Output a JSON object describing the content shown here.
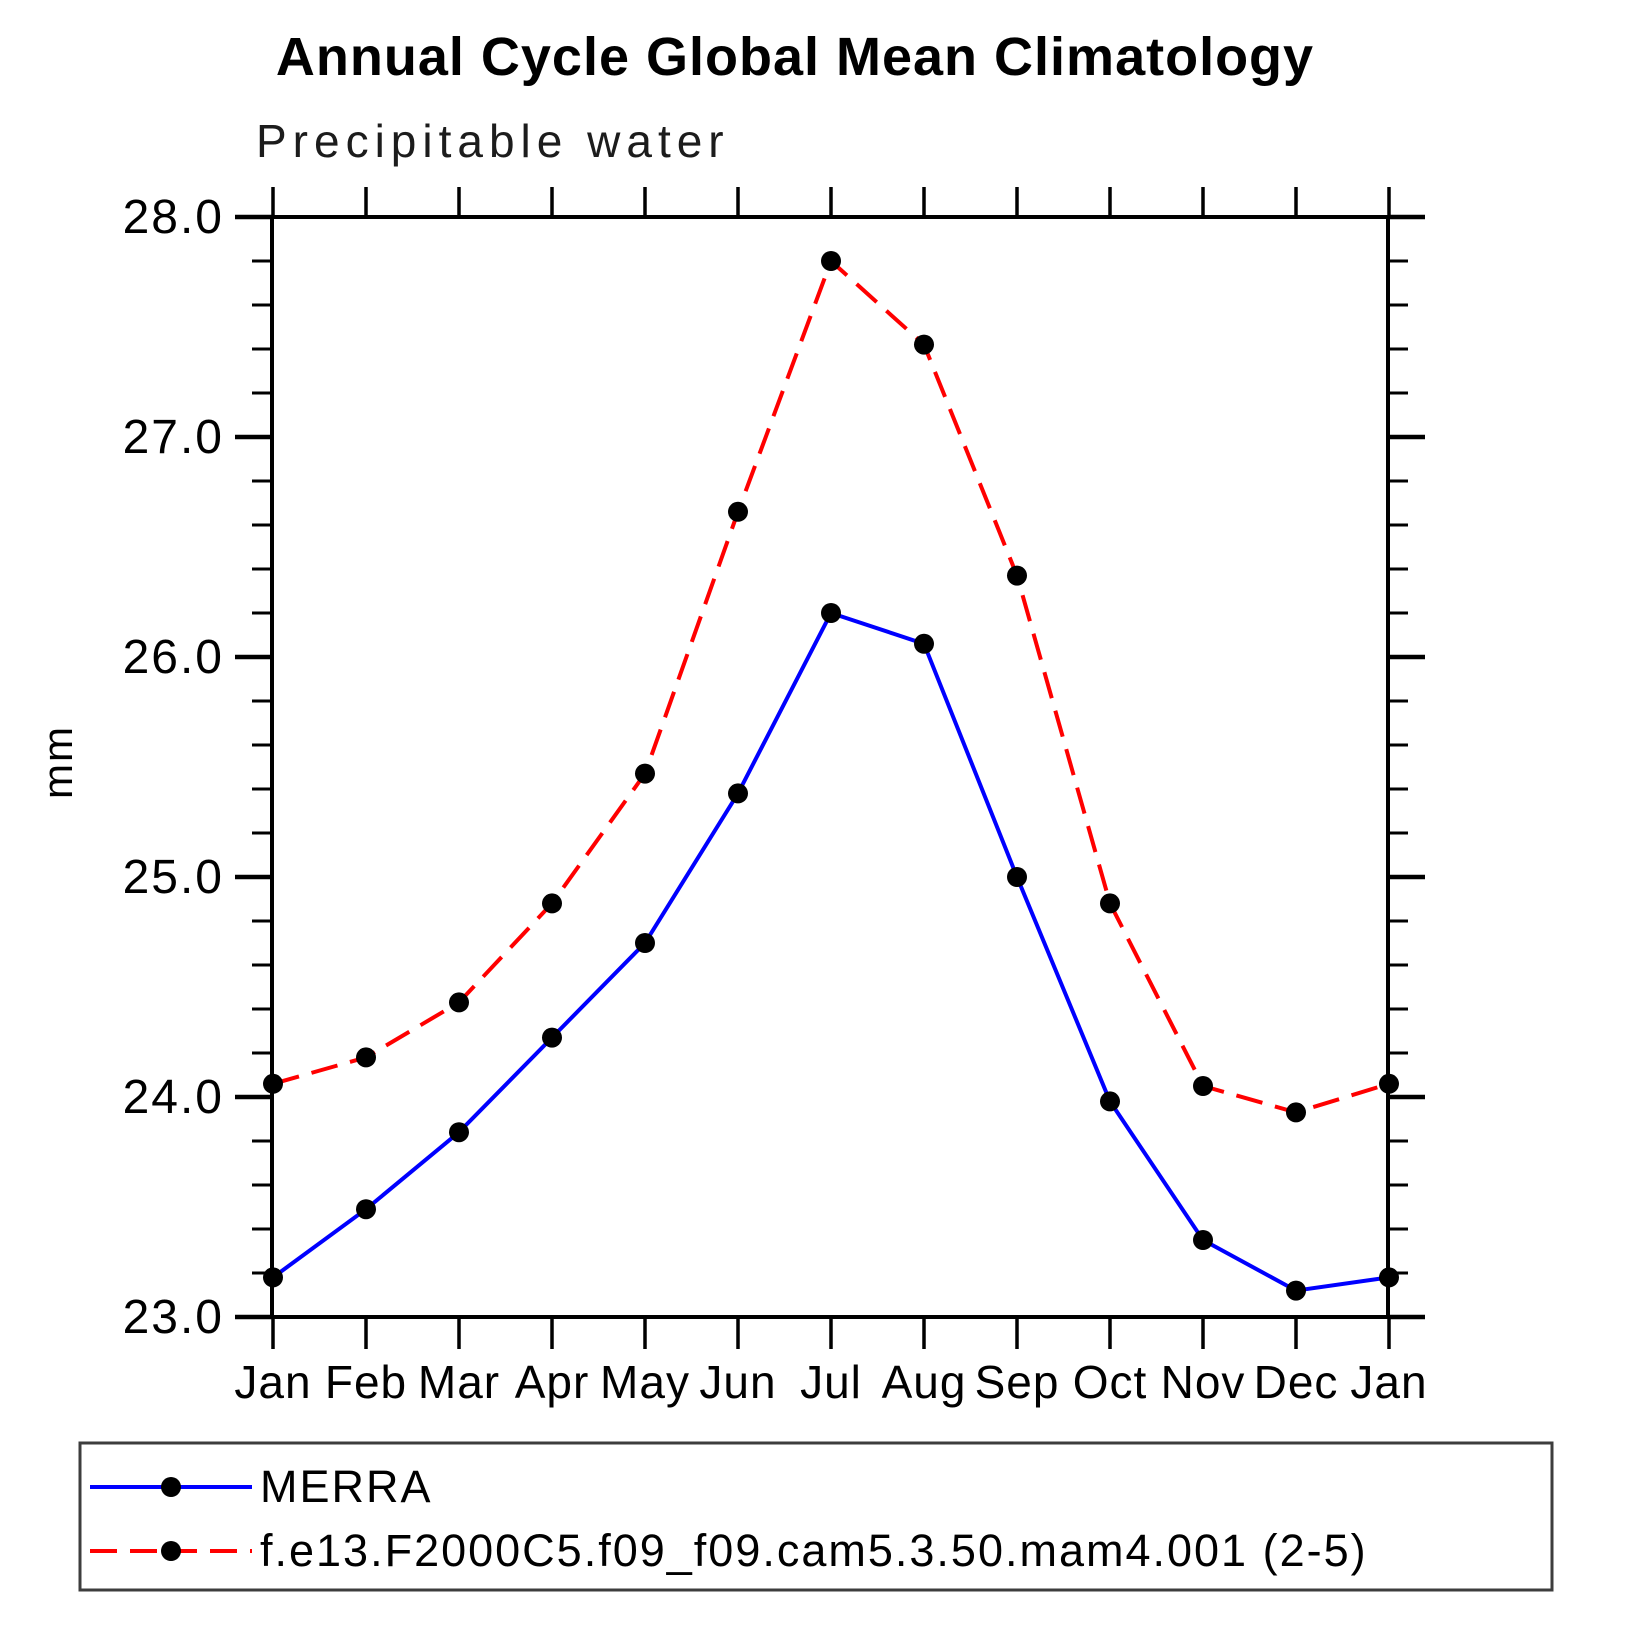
{
  "title": "Annual Cycle Global Mean Climatology",
  "subtitle": "Precipitable water",
  "chart_data": {
    "type": "line",
    "title": "Annual Cycle Global Mean Climatology",
    "subtitle": "Precipitable water",
    "xlabel": "",
    "ylabel": "mm",
    "categories": [
      "Jan",
      "Feb",
      "Mar",
      "Apr",
      "May",
      "Jun",
      "Jul",
      "Aug",
      "Sep",
      "Oct",
      "Nov",
      "Dec",
      "Jan"
    ],
    "ylim": [
      23.0,
      28.0
    ],
    "ytick_interval": 1.0,
    "yminor_interval": 0.2,
    "ytick_labels": [
      "23.0",
      "24.0",
      "25.0",
      "26.0",
      "27.0",
      "28.0"
    ],
    "grid": false,
    "legend_position": "bottom",
    "series": [
      {
        "name": "MERRA",
        "line_color": "#0000ff",
        "line_style": "solid",
        "marker": "circle",
        "marker_color": "#000000",
        "values": [
          23.18,
          23.49,
          23.84,
          24.27,
          24.7,
          25.38,
          26.2,
          26.06,
          25.0,
          23.98,
          23.35,
          23.12,
          23.18
        ]
      },
      {
        "name": "f.e13.F2000C5.f09_f09.cam5.3.50.mam4.001 (2-5)",
        "line_color": "#ff0000",
        "line_style": "dashed",
        "marker": "circle",
        "marker_color": "#000000",
        "values": [
          24.06,
          24.18,
          24.43,
          24.88,
          25.47,
          26.66,
          27.8,
          27.42,
          26.37,
          24.88,
          24.05,
          23.93,
          24.06
        ]
      }
    ],
    "axis_color": "#000000",
    "legend_border_color": "#3d3d3d"
  }
}
